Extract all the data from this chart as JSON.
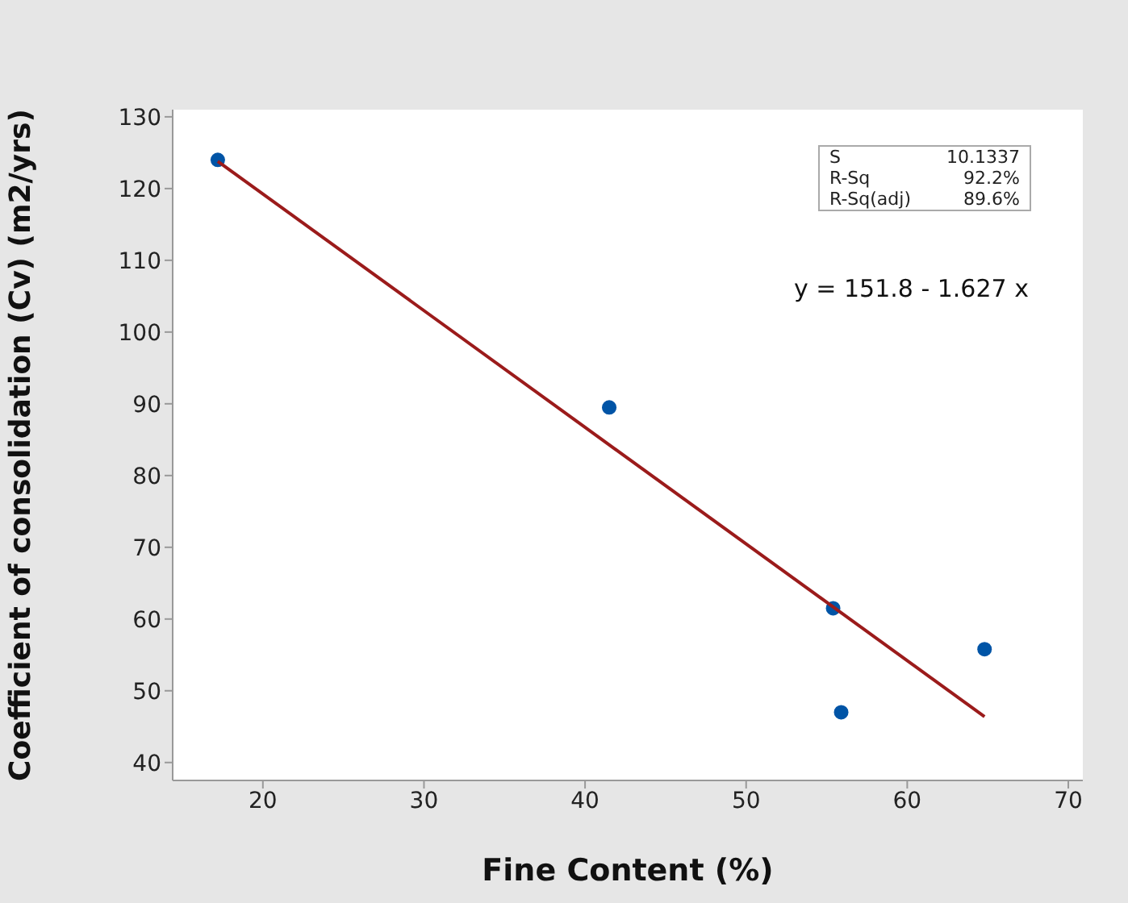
{
  "chart_data": {
    "type": "scatter",
    "xlabel": "Fine Content (%)",
    "ylabel": "Coefficient of consolidation (Cv) (m2/yrs)",
    "xlim": [
      14.4,
      70.9
    ],
    "xticks": [
      20,
      30,
      40,
      50,
      60,
      70
    ],
    "ylim": [
      37.5,
      131
    ],
    "yticks": [
      40,
      50,
      60,
      70,
      80,
      90,
      100,
      110,
      120,
      130
    ],
    "series": [
      {
        "marker": "circle",
        "color": "#0054a6",
        "x": [
          17.2,
          41.5,
          55.4,
          55.9,
          64.8
        ],
        "values": [
          124,
          89.5,
          61.5,
          47,
          55.8
        ]
      },
      {
        "type": "line",
        "color": "#9b1b1b",
        "x": [
          17.2,
          64.8
        ],
        "values": [
          123.8,
          46.4
        ]
      }
    ],
    "annotations": [
      "S",
      "10.1337",
      "R-Sq",
      "92.2%",
      "R-Sq(adj)",
      "89.6%",
      "y = 151.8 - 1.627 x"
    ]
  }
}
